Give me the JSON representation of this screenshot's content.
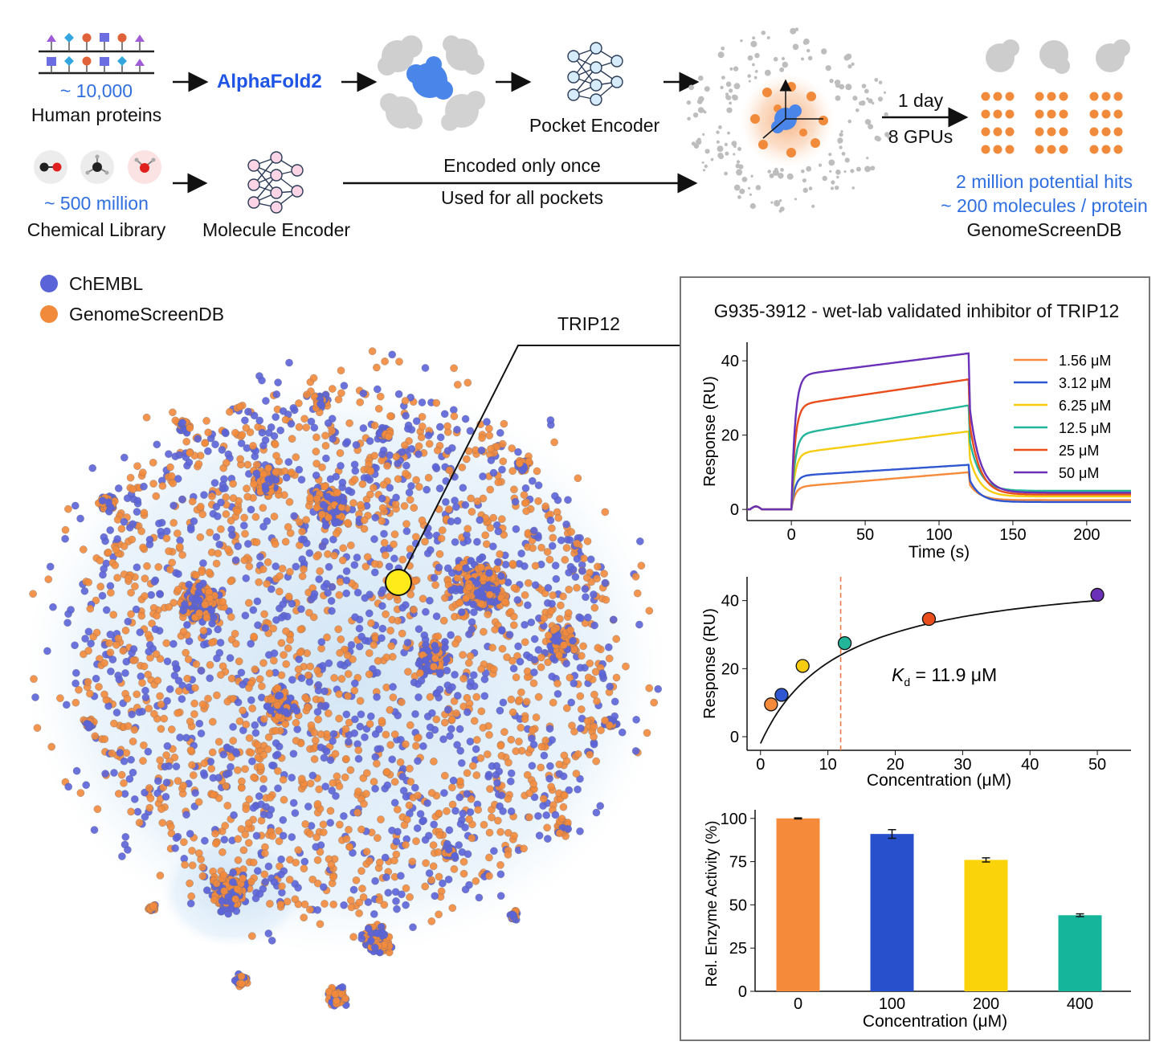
{
  "pipeline": {
    "protein_count": "~ 10,000",
    "protein_label": "Human proteins",
    "alphafold_label": "AlphaFold2",
    "pocket_encoder_label": "Pocket Encoder",
    "chem_count": "~ 500 million",
    "chem_label": "Chemical Library",
    "molecule_encoder_label": "Molecule Encoder",
    "arrow_note_1": "Encoded only once",
    "arrow_note_2": "Used for all pockets",
    "compute_time": "1 day",
    "compute_gpus": "8 GPUs",
    "hits_line": "2 million potential hits",
    "per_protein_line": "~ 200 molecules / protein",
    "db_label": "GenomeScreenDB"
  },
  "colors": {
    "chembl": "#5b63d8",
    "genomescreen": "#f28a3b",
    "highlight": "#ffeb1a",
    "accent_blue": "#1f55e6"
  },
  "legend": {
    "items": [
      {
        "label": "ChEMBL",
        "color": "#5b63d8"
      },
      {
        "label": "GenomeScreenDB",
        "color": "#f28a3b"
      }
    ]
  },
  "callout": {
    "label": "TRIP12"
  },
  "panel": {
    "title": "G935-3912 - wet-lab validated inhibitor of TRIP12"
  },
  "chart_data": [
    {
      "type": "line",
      "xlabel": "Time (s)",
      "ylabel": "Response (RU)",
      "xlim": [
        -30,
        230
      ],
      "ylim": [
        -3,
        45
      ],
      "xticks": [
        0,
        50,
        100,
        150,
        200
      ],
      "yticks": [
        0,
        20,
        40
      ],
      "legend_position": "top-right",
      "series": [
        {
          "name": "1.56 μM",
          "color": "#f58a3a",
          "plateau_start": 6,
          "plateau_end": 10,
          "dissoc_end": 2.5
        },
        {
          "name": "3.12 μM",
          "color": "#2f57d1",
          "plateau_start": 9,
          "plateau_end": 12,
          "dissoc_end": 2
        },
        {
          "name": "6.25 μM",
          "color": "#f5cc10",
          "plateau_start": 15,
          "plateau_end": 21,
          "dissoc_end": 3.5
        },
        {
          "name": "12.5 μM",
          "color": "#22b59a",
          "plateau_start": 20,
          "plateau_end": 28,
          "dissoc_end": 5
        },
        {
          "name": "25 μM",
          "color": "#e94d1b",
          "plateau_start": 28,
          "plateau_end": 35,
          "dissoc_end": 4
        },
        {
          "name": "50 μM",
          "color": "#6a31b8",
          "plateau_start": 36,
          "plateau_end": 42,
          "dissoc_end": 4.5
        }
      ]
    },
    {
      "type": "scatter",
      "xlabel": "Concentration (μM)",
      "ylabel": "Response (RU)",
      "xlim": [
        -2,
        55
      ],
      "ylim": [
        -4,
        47
      ],
      "xticks": [
        0,
        10,
        20,
        30,
        40,
        50
      ],
      "yticks": [
        0,
        20,
        40
      ],
      "annotation_symbol": "K",
      "annotation_sub": "d",
      "annotation_text": "= 11.9 μM",
      "kd": 11.9,
      "rmax": 52,
      "points": [
        {
          "x": 1.56,
          "y": 9.5,
          "color": "#f58a3a"
        },
        {
          "x": 3.12,
          "y": 12.3,
          "color": "#2f57d1"
        },
        {
          "x": 6.25,
          "y": 20.8,
          "color": "#f5cc10"
        },
        {
          "x": 12.5,
          "y": 27.5,
          "color": "#22b59a"
        },
        {
          "x": 25,
          "y": 34.6,
          "color": "#e94d1b"
        },
        {
          "x": 50,
          "y": 41.7,
          "color": "#6a31b8"
        }
      ]
    },
    {
      "type": "bar",
      "xlabel": "Concentration (μM)",
      "ylabel": "Rel. Enzyme Activity (%)",
      "ylim": [
        0,
        105
      ],
      "yticks": [
        0,
        25,
        50,
        75,
        100
      ],
      "categories": [
        "0",
        "100",
        "200",
        "400"
      ],
      "values": [
        100,
        91,
        76,
        44
      ],
      "errors": [
        0.3,
        2.5,
        1.2,
        0.8
      ],
      "colors": [
        "#f58a3a",
        "#2950cc",
        "#fbd30a",
        "#15b59c"
      ]
    }
  ]
}
